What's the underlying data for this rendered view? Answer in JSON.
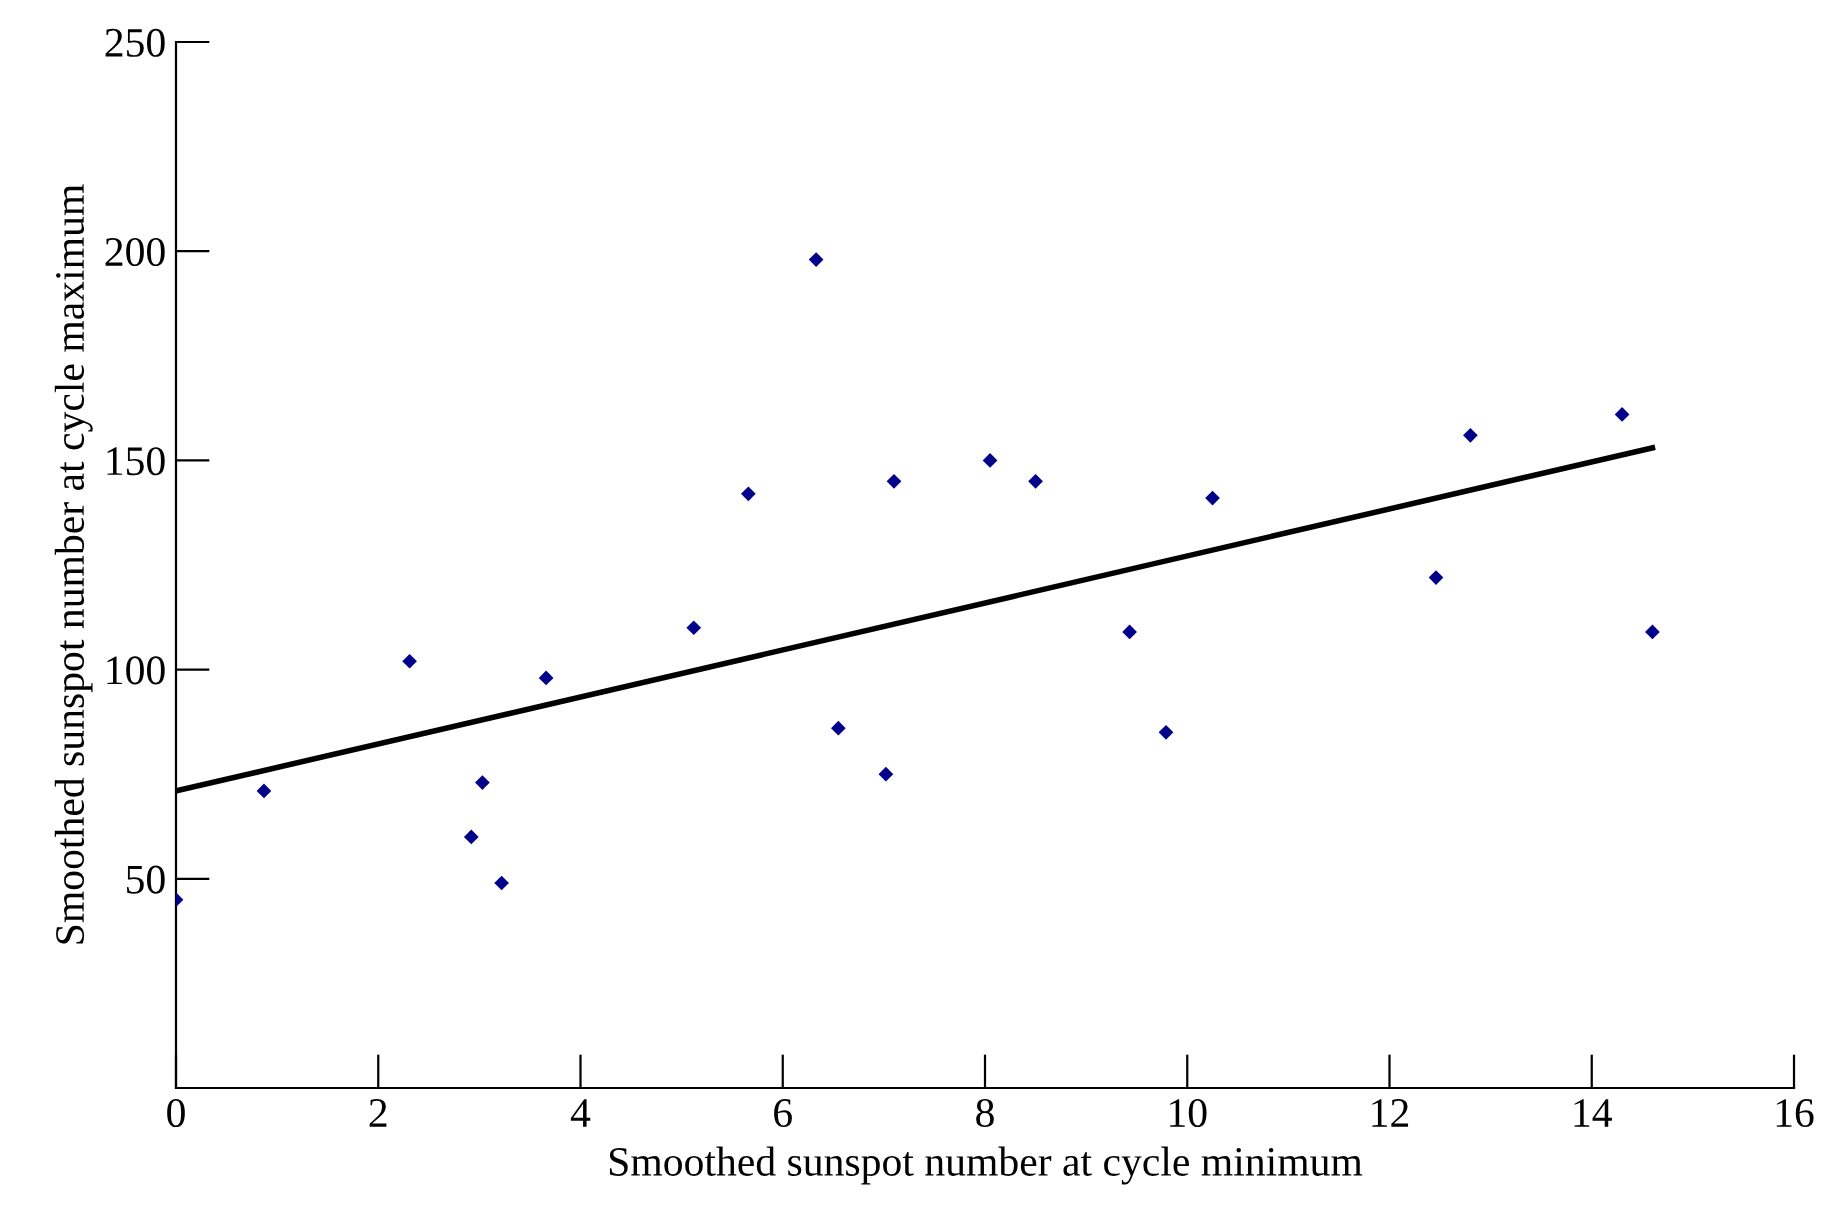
{
  "chart_data": {
    "type": "scatter",
    "xlabel": "Smoothed sunspot number at cycle minimum",
    "ylabel": "Smoothed sunspot number at cycle maximum",
    "xlim": [
      0,
      16
    ],
    "ylim": [
      0,
      250
    ],
    "xticks": [
      0,
      2,
      4,
      6,
      8,
      10,
      12,
      14,
      16
    ],
    "yticks": [
      {
        "value": 0,
        "label": null
      },
      50,
      100,
      150,
      200,
      250
    ],
    "grid": false,
    "legend": false,
    "series": [
      {
        "marker": "diamond",
        "color": "#00008b",
        "x": [
          0,
          0.87,
          2.31,
          2.92,
          3.03,
          3.22,
          3.66,
          5.12,
          5.66,
          6.33,
          6.55,
          7.02,
          7.1,
          8.05,
          8.5,
          9.43,
          9.79,
          10.25,
          12.46,
          12.8,
          14.3,
          14.6
        ],
        "values": [
          45,
          71,
          102,
          60,
          73,
          49,
          98,
          110,
          142,
          198,
          86,
          75,
          145,
          150,
          145,
          109,
          85,
          141,
          122,
          156,
          161,
          109
        ]
      },
      {
        "type": "line",
        "color": "#000000",
        "x": [
          0,
          14.6
        ],
        "values": [
          71,
          153
        ],
        "line_style": "solid",
        "marker": "none"
      }
    ]
  }
}
